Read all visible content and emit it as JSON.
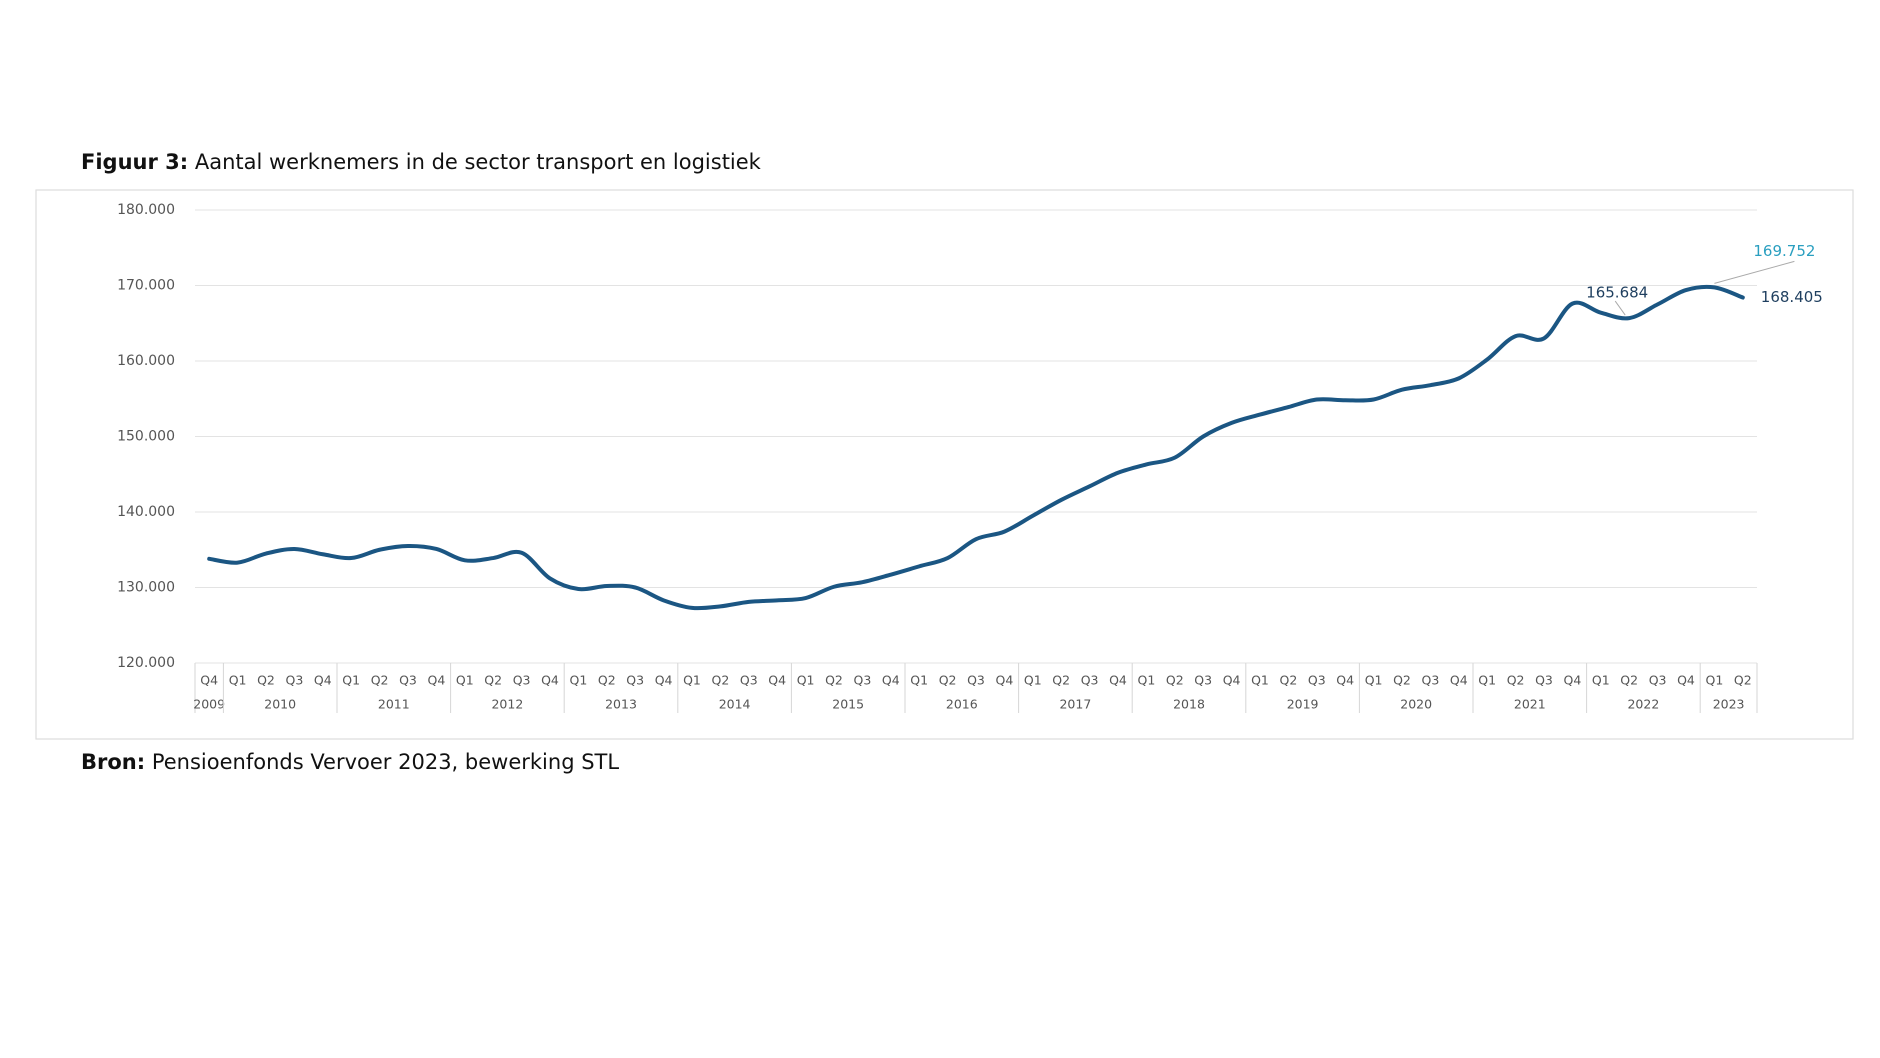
{
  "chart_data": {
    "type": "line",
    "figure_label": "Figuur 3:",
    "title": "Aantal werknemers in de sector transport en logistiek",
    "source_label": "Bron:",
    "source": "Pensioenfonds Vervoer 2023, bewerking STL",
    "categories": [
      "Q4",
      "Q1",
      "Q2",
      "Q3",
      "Q4",
      "Q1",
      "Q2",
      "Q3",
      "Q4",
      "Q1",
      "Q2",
      "Q3",
      "Q4",
      "Q1",
      "Q2",
      "Q3",
      "Q4",
      "Q1",
      "Q2",
      "Q3",
      "Q4",
      "Q1",
      "Q2",
      "Q3",
      "Q4",
      "Q1",
      "Q2",
      "Q3",
      "Q4",
      "Q1",
      "Q2",
      "Q3",
      "Q4",
      "Q1",
      "Q2",
      "Q3",
      "Q4",
      "Q1",
      "Q2",
      "Q3",
      "Q4",
      "Q1",
      "Q2",
      "Q3",
      "Q4",
      "Q1",
      "Q2",
      "Q3",
      "Q4",
      "Q1",
      "Q2",
      "Q3",
      "Q4",
      "Q1",
      "Q2"
    ],
    "years": [
      "2009",
      "2010",
      "2011",
      "2012",
      "2013",
      "2014",
      "2015",
      "2016",
      "2017",
      "2018",
      "2019",
      "2020",
      "2021",
      "2022",
      "2023"
    ],
    "series": [
      {
        "name": "Aantal werknemers",
        "color": "#1b5683",
        "values": [
          133800,
          133300,
          134500,
          135100,
          134400,
          133900,
          135000,
          135500,
          135100,
          133600,
          133900,
          134600,
          131200,
          129800,
          130200,
          130000,
          128300,
          127300,
          127500,
          128100,
          128300,
          128600,
          130100,
          130700,
          131700,
          132800,
          133900,
          136400,
          137400,
          139500,
          141600,
          143400,
          145200,
          146300,
          147200,
          150000,
          151800,
          152900,
          153900,
          154900,
          154800,
          154900,
          156200,
          156800,
          157700,
          160200,
          163300,
          163000,
          167600,
          166400,
          165684,
          167500,
          169400,
          169752,
          168405
        ],
        "value_labels": [
          null,
          null,
          null,
          null,
          null,
          null,
          null,
          null,
          null,
          null,
          null,
          null,
          null,
          null,
          null,
          null,
          null,
          null,
          null,
          null,
          null,
          null,
          null,
          null,
          null,
          null,
          null,
          null,
          null,
          null,
          null,
          null,
          null,
          null,
          null,
          null,
          null,
          null,
          null,
          null,
          null,
          null,
          null,
          null,
          null,
          null,
          null,
          null,
          null,
          null,
          "165.684",
          null,
          null,
          "169.752",
          "168.405"
        ]
      }
    ],
    "highlight_label_color": "#2a9fc0",
    "ylim": [
      120000,
      180000
    ],
    "yticks": [
      {
        "value": 120000,
        "label": "120.000"
      },
      {
        "value": 130000,
        "label": "130.000"
      },
      {
        "value": 140000,
        "label": "140.000"
      },
      {
        "value": 150000,
        "label": "150.000"
      },
      {
        "value": 160000,
        "label": "160.000"
      },
      {
        "value": 170000,
        "label": "170.000"
      },
      {
        "value": 180000,
        "label": "180.000"
      }
    ],
    "grid": true
  }
}
